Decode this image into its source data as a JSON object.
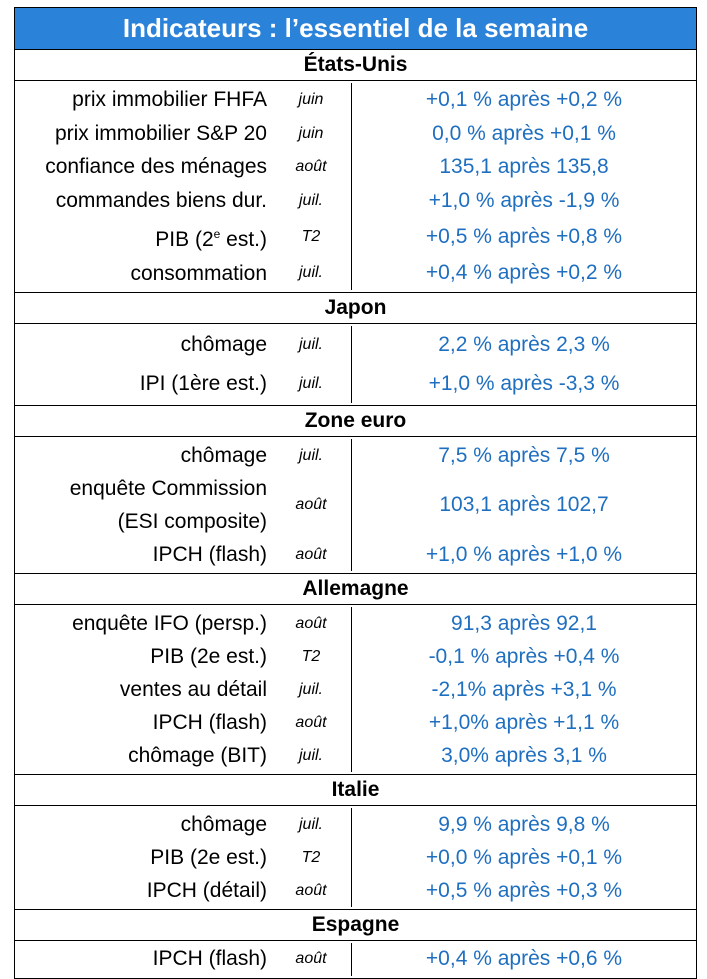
{
  "title": "Indicateurs : l’essentiel de la semaine",
  "sections": [
    {
      "name": "États-Unis",
      "rows": [
        {
          "label": "prix immobilier FHFA",
          "period": "juin",
          "value": "+0,1 % après +0,2 %"
        },
        {
          "label": "prix immobilier S&P 20",
          "period": "juin",
          "value": "0,0 % après +0,1 %"
        },
        {
          "label": "confiance des ménages",
          "period": "août",
          "value": "135,1 après 135,8"
        },
        {
          "label": "commandes biens dur.",
          "period": "juil.",
          "value": "+1,0 % après -1,9 %"
        },
        {
          "label": "PIB (2e est.)",
          "period": "T2",
          "value": "+0,5 % après +0,8 %"
        },
        {
          "label": "consommation",
          "period": "juil.",
          "value": "+0,4 % après +0,2 %"
        }
      ]
    },
    {
      "name": "Japon",
      "rows": [
        {
          "label": "chômage",
          "period": "juil.",
          "value": "2,2 % après 2,3 %"
        },
        {
          "label": "IPI (1ère est.)",
          "period": "juil.",
          "value": "+1,0 % après -3,3 %"
        }
      ]
    },
    {
      "name": "Zone euro",
      "rows": [
        {
          "label": "chômage",
          "period": "juil.",
          "value": "7,5 % après 7,5 %"
        },
        {
          "label": "enquête Commission",
          "label2": "(ESI composite)",
          "period": "août",
          "value": "103,1 après 102,7"
        },
        {
          "label": "IPCH (flash)",
          "period": "août",
          "value": "+1,0 % après +1,0 %"
        }
      ]
    },
    {
      "name": "Allemagne",
      "rows": [
        {
          "label": "enquête IFO (persp.)",
          "period": "août",
          "value": "91,3 après 92,1"
        },
        {
          "label": "PIB (2e est.)",
          "period": "T2",
          "value": "-0,1 % après +0,4 %"
        },
        {
          "label": "ventes au détail",
          "period": "juil.",
          "value": "-2,1% après +3,1 %"
        },
        {
          "label": "IPCH (flash)",
          "period": "août",
          "value": "+1,0% après +1,1 %"
        },
        {
          "label": "chômage (BIT)",
          "period": "juil.",
          "value": "3,0% après 3,1 %"
        }
      ]
    },
    {
      "name": "Italie",
      "rows": [
        {
          "label": "chômage",
          "period": "juil.",
          "value": "9,9 % après 9,8 %"
        },
        {
          "label": "PIB (2e est.)",
          "period": "T2",
          "value": "+0,0 % après +0,1 %"
        },
        {
          "label": "IPCH (détail)",
          "period": "août",
          "value": "+0,5 % après +0,3 %"
        }
      ]
    },
    {
      "name": "Espagne",
      "rows": [
        {
          "label": "IPCH (flash)",
          "period": "août",
          "value": "+0,4 % après +0,6 %"
        }
      ]
    }
  ],
  "colors": {
    "title_bg": "#2b82d9",
    "value_text": "#1f6fc0"
  }
}
